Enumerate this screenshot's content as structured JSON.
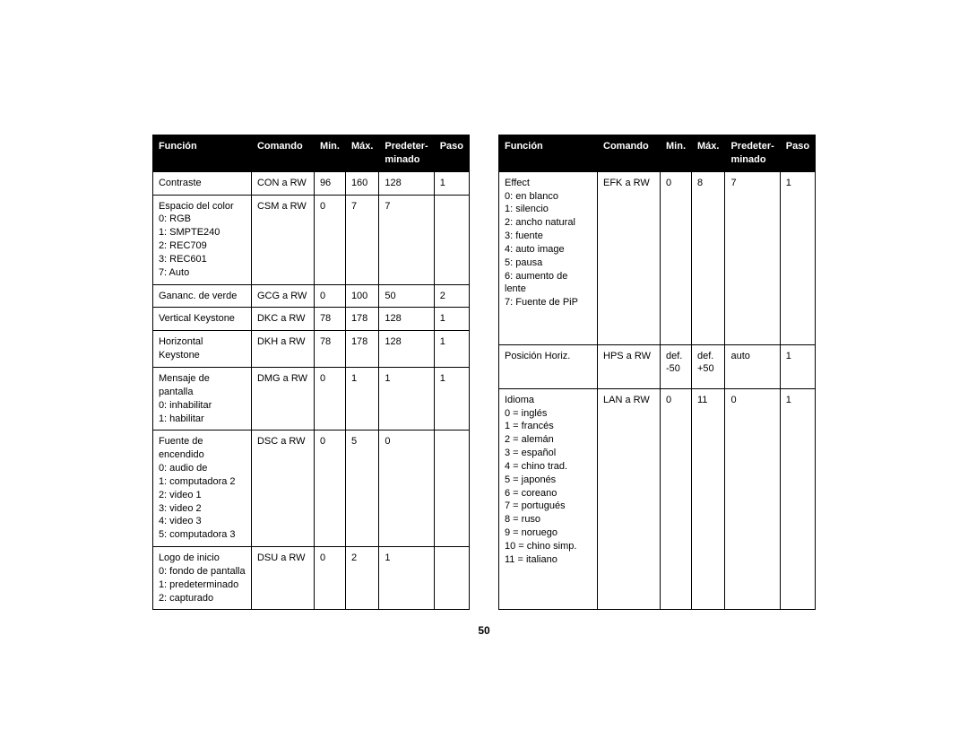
{
  "page_number": "50",
  "headers": [
    "Función",
    "Comando",
    "Min.",
    "Máx.",
    "Predeter-\nminado",
    "Paso"
  ],
  "left": [
    {
      "func": "Contraste",
      "cmd": "CON a RW",
      "min": "96",
      "max": "160",
      "def": "128",
      "step": "1"
    },
    {
      "func": "Espacio del color\n0: RGB\n1: SMPTE240\n2: REC709\n3: REC601\n7: Auto",
      "cmd": "CSM a RW",
      "min": "0",
      "max": "7",
      "def": "7",
      "step": ""
    },
    {
      "func": "Gananc. de verde",
      "cmd": "GCG a RW",
      "min": "0",
      "max": "100",
      "def": "50",
      "step": "2"
    },
    {
      "func": "Vertical Keystone",
      "cmd": "DKC a RW",
      "min": "78",
      "max": "178",
      "def": "128",
      "step": "1"
    },
    {
      "func": "Horizontal Keystone",
      "cmd": "DKH a RW",
      "min": "78",
      "max": "178",
      "def": "128",
      "step": "1"
    },
    {
      "func": "Mensaje de pantalla\n0: inhabilitar\n1: habilitar",
      "cmd": "DMG a RW",
      "min": "0",
      "max": "1",
      "def": "1",
      "step": "1"
    },
    {
      "func": "Fuente de encendido\n0: audio de\n1: computadora 2\n2: video 1\n3: video 2\n4: video 3\n5: computadora 3",
      "cmd": "DSC a RW",
      "min": "0",
      "max": "5",
      "def": "0",
      "step": ""
    },
    {
      "func": "Logo de inicio\n0: fondo de pantalla\n1: predeterminado\n2: capturado",
      "cmd": "DSU a RW",
      "min": "0",
      "max": "2",
      "def": "1",
      "step": ""
    }
  ],
  "right": [
    {
      "func": "Effect\n0: en blanco\n1: silencio\n2: ancho natural\n3: fuente\n4: auto image\n5: pausa\n6: aumento de lente\n7: Fuente de PiP",
      "cmd": "EFK a RW",
      "min": "0",
      "max": "8",
      "def": "7",
      "step": "1"
    },
    {
      "func": "Posición Horiz.",
      "cmd": "HPS a RW",
      "min": "def.\n-50",
      "max": "def.\n+50",
      "def": "auto",
      "step": "1"
    },
    {
      "func": "Idioma\n0 = inglés\n1 = francés\n2 = alemán\n3 = español\n4 = chino trad.\n5 = japonés\n6 = coreano\n7 = portugués\n8 = ruso\n9 = noruego\n10 = chino simp.\n11 = italiano",
      "cmd": "LAN a RW",
      "min": "0",
      "max": "11",
      "def": "0",
      "step": "1"
    }
  ]
}
